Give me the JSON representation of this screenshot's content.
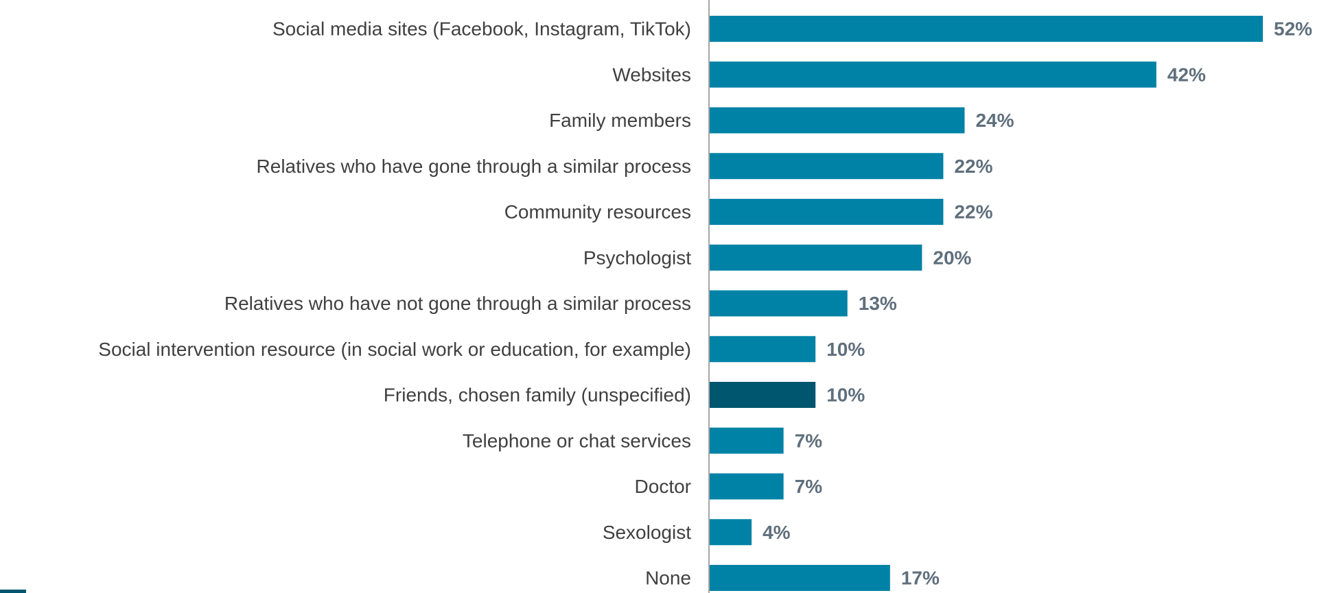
{
  "chart_data": {
    "type": "bar",
    "orientation": "horizontal",
    "categories": [
      "Social media sites (Facebook, Instagram, TikTok)",
      "Websites",
      "Family members",
      "Relatives who have gone through a similar process",
      "Community resources ",
      "Psychologist",
      "Relatives who have not gone through a similar process",
      "Social intervention resource (in social work or education, for example)",
      "Friends, chosen family (unspecified)",
      "Telephone or chat services",
      "Doctor",
      "Sexologist",
      "None "
    ],
    "values": [
      52,
      42,
      24,
      22,
      22,
      20,
      13,
      10,
      10,
      7,
      7,
      4,
      17
    ],
    "value_labels": [
      "52%",
      "42%",
      "24%",
      "22%",
      "22%",
      "20%",
      "13%",
      "10%",
      "10%",
      "7%",
      "7%",
      "4%",
      "17%"
    ],
    "unit": "%",
    "xlim": [
      0,
      52
    ],
    "grid": false,
    "colors": {
      "bar": "#0082a6",
      "highlight": "#00566e",
      "axis": "#a6a6a6",
      "category_text": "#404040",
      "value_text": "#5f6f7c"
    },
    "highlight_index": 8
  }
}
